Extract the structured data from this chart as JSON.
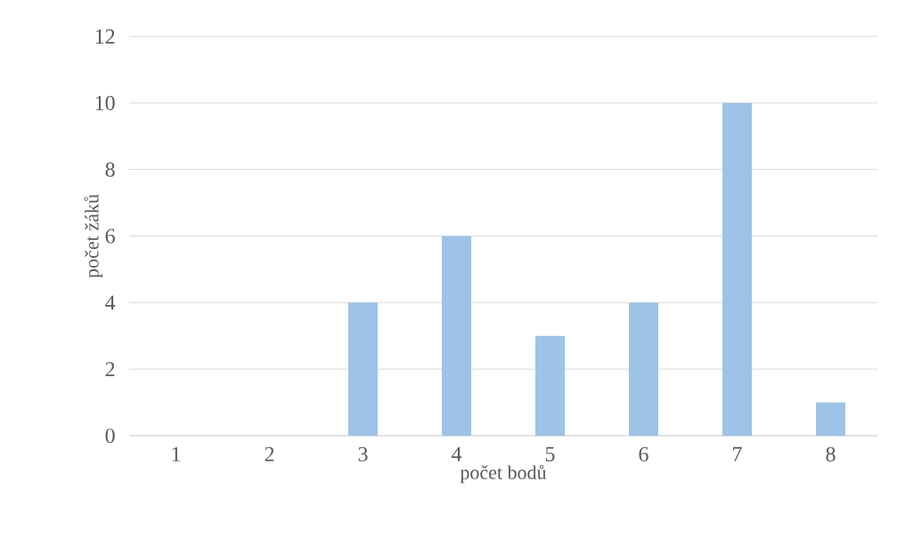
{
  "chart_data": {
    "type": "bar",
    "xlabel": "počet bodů",
    "ylabel": "počet žáků",
    "categories": [
      "1",
      "2",
      "3",
      "4",
      "5",
      "6",
      "7",
      "8"
    ],
    "values": [
      0,
      0,
      4,
      6,
      3,
      4,
      10,
      1
    ],
    "color": "#9dc3e6",
    "ylim": [
      0,
      12
    ],
    "yticks": [
      0,
      2,
      4,
      6,
      8,
      10,
      12
    ],
    "grid": "y"
  }
}
